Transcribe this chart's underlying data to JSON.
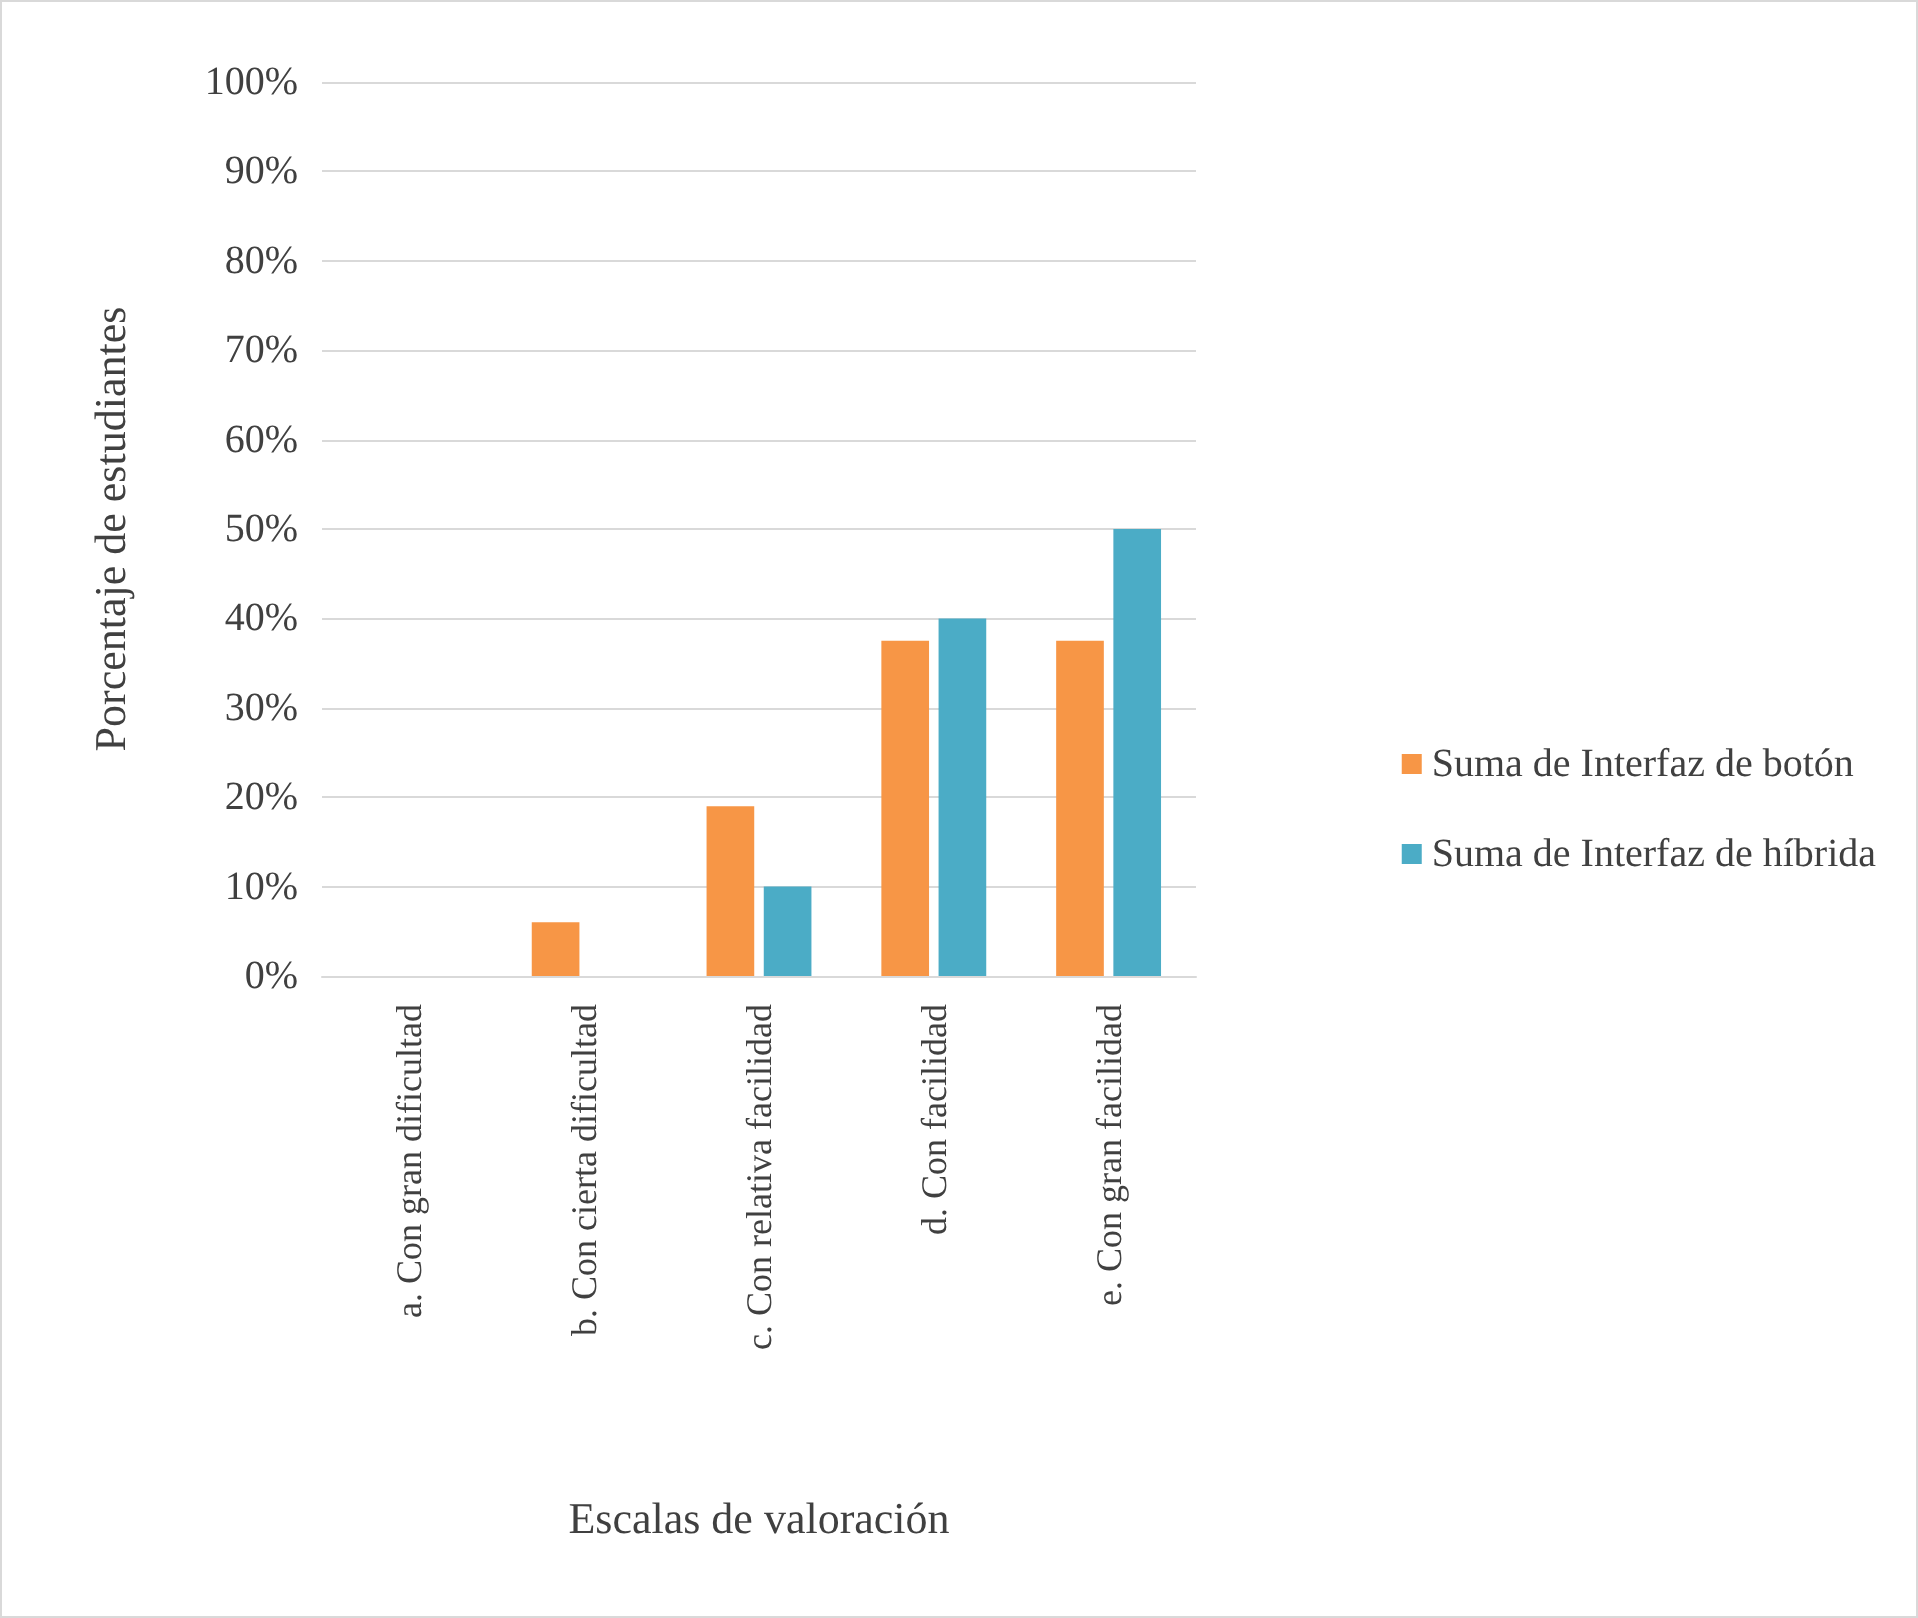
{
  "chart_data": {
    "type": "bar",
    "xlabel": "Escalas de valoración",
    "ylabel": "Porcentaje de estudiantes",
    "categories": [
      "a. Con gran dificultad",
      "b. Con cierta dificultad",
      "c. Con relativa facilidad",
      "d. Con facilidad",
      "e. Con gran facilidad"
    ],
    "series": [
      {
        "name": "Suma de Interfaz de botón",
        "color": "#f79646",
        "values": [
          0,
          6,
          19,
          37.5,
          37.5
        ]
      },
      {
        "name": "Suma de Interfaz de híbrida",
        "color": "#4bacc6",
        "values": [
          0,
          0,
          10,
          40,
          50
        ]
      }
    ],
    "ylim": [
      0,
      100
    ],
    "yticks": [
      {
        "value": 0,
        "label": "0%"
      },
      {
        "value": 10,
        "label": "10%"
      },
      {
        "value": 20,
        "label": "20%"
      },
      {
        "value": 30,
        "label": "30%"
      },
      {
        "value": 40,
        "label": "40%"
      },
      {
        "value": 50,
        "label": "50%"
      },
      {
        "value": 60,
        "label": "60%"
      },
      {
        "value": 70,
        "label": "70%"
      },
      {
        "value": 80,
        "label": "80%"
      },
      {
        "value": 90,
        "label": "90%"
      },
      {
        "value": 100,
        "label": "100%"
      }
    ],
    "grid": "y",
    "legend": "right"
  }
}
